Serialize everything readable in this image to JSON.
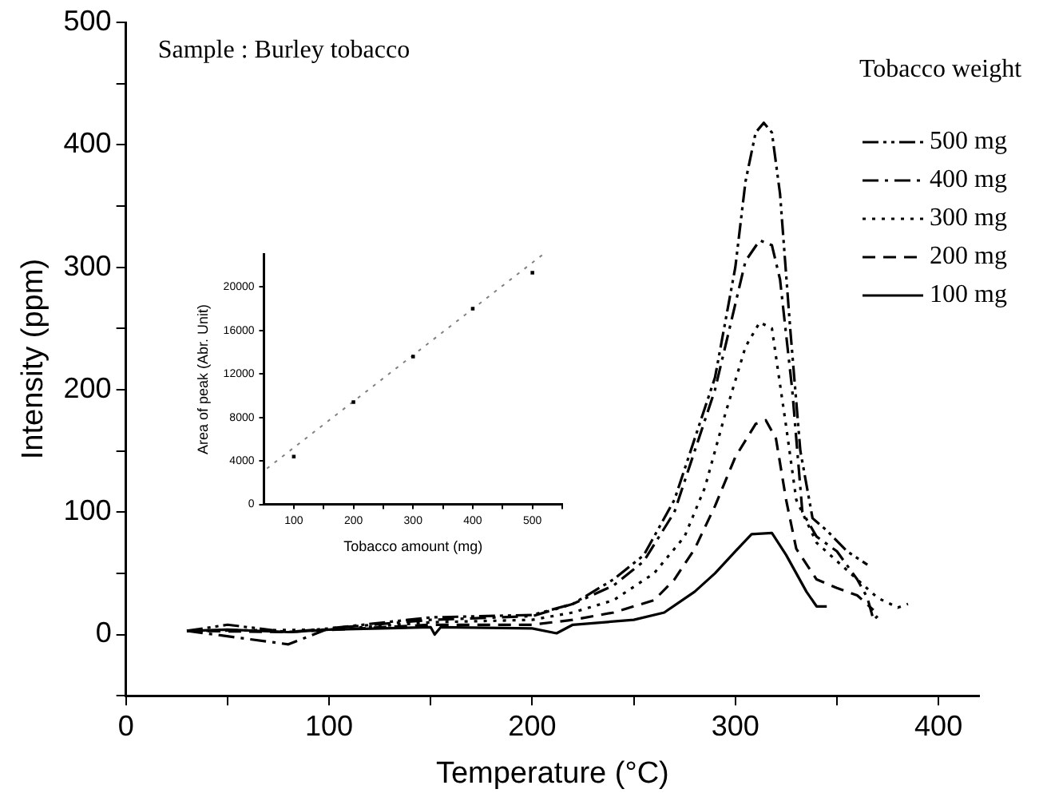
{
  "chart_data": [
    {
      "type": "line",
      "xlabel": "Temperature (°C)",
      "ylabel": "Intensity (ppm)",
      "legend_title": "Tobacco weight",
      "legend": "top right",
      "grid": false,
      "annotations": [
        "Sample : Burley tobacco"
      ],
      "xlim": [
        0,
        420
      ],
      "xticks": [
        0,
        {
          "value": 50,
          "label": null
        },
        100,
        {
          "value": 150,
          "label": null
        },
        200,
        {
          "value": 250,
          "label": null
        },
        300,
        {
          "value": 350,
          "label": null
        },
        400
      ],
      "ylim": [
        -50,
        500
      ],
      "yticks": [
        {
          "value": -50,
          "label": null
        },
        0,
        {
          "value": 50,
          "label": null
        },
        100,
        {
          "value": 150,
          "label": null
        },
        200,
        {
          "value": 250,
          "label": null
        },
        300,
        {
          "value": 350,
          "label": null
        },
        400,
        {
          "value": 450,
          "label": null
        },
        500
      ],
      "series": [
        {
          "name": "500 mg",
          "color": "#000000",
          "line_style": "dashdotdot",
          "x": [
            30,
            50,
            80,
            100,
            150,
            200,
            220,
            240,
            255,
            270,
            280,
            290,
            300,
            305,
            310,
            314,
            318,
            322,
            327,
            332,
            338,
            345,
            355,
            365
          ],
          "values": [
            3,
            8,
            2,
            5,
            14,
            16,
            25,
            45,
            65,
            110,
            160,
            210,
            300,
            370,
            410,
            418,
            410,
            360,
            250,
            150,
            95,
            85,
            68,
            57
          ]
        },
        {
          "name": "400 mg",
          "color": "#000000",
          "line_style": "dashdot",
          "x": [
            30,
            80,
            100,
            150,
            200,
            220,
            240,
            255,
            270,
            280,
            290,
            300,
            305,
            312,
            318,
            322,
            328,
            333,
            340,
            350,
            360,
            365,
            368,
            372
          ],
          "values": [
            3,
            -8,
            5,
            12,
            15,
            25,
            40,
            60,
            100,
            150,
            200,
            270,
            305,
            322,
            318,
            290,
            200,
            100,
            80,
            68,
            45,
            30,
            12,
            18
          ]
        },
        {
          "name": "300 mg",
          "color": "#000000",
          "line_style": "dotted",
          "x": [
            30,
            100,
            150,
            200,
            220,
            240,
            260,
            275,
            285,
            295,
            305,
            312,
            318,
            325,
            330,
            340,
            350,
            360,
            370,
            380,
            385
          ],
          "values": [
            3,
            4,
            10,
            12,
            18,
            28,
            50,
            80,
            120,
            180,
            235,
            255,
            250,
            170,
            110,
            75,
            60,
            45,
            30,
            22,
            25
          ]
        },
        {
          "name": "200 mg",
          "color": "#000000",
          "line_style": "dashed",
          "x": [
            30,
            80,
            150,
            200,
            220,
            240,
            260,
            270,
            280,
            290,
            300,
            310,
            315,
            320,
            325,
            330,
            340,
            350,
            360,
            368
          ],
          "values": [
            3,
            2,
            8,
            8,
            12,
            18,
            28,
            45,
            70,
            105,
            145,
            172,
            175,
            160,
            110,
            70,
            45,
            38,
            32,
            20
          ]
        },
        {
          "name": "100 mg",
          "color": "#000000",
          "line_style": "solid",
          "x": [
            30,
            50,
            80,
            100,
            150,
            152,
            155,
            200,
            212,
            220,
            250,
            265,
            280,
            290,
            300,
            308,
            318,
            325,
            335,
            340,
            345
          ],
          "values": [
            3,
            4,
            2,
            4,
            6,
            0,
            6,
            5,
            1,
            8,
            12,
            18,
            35,
            50,
            68,
            82,
            83,
            65,
            35,
            23,
            23
          ]
        }
      ]
    },
    {
      "type": "scatter",
      "xlabel": "Tobacco amount (mg)",
      "ylabel": "Area of peak (Abr. Unit)",
      "grid": false,
      "marker": "square",
      "xlim": [
        50,
        550
      ],
      "xticks": [
        100,
        {
          "value": 150,
          "label": null
        },
        200,
        {
          "value": 250,
          "label": null
        },
        300,
        {
          "value": 350,
          "label": null
        },
        400,
        {
          "value": 450,
          "label": null
        },
        500,
        {
          "value": 550,
          "label": null
        }
      ],
      "ylim": [
        0,
        23000
      ],
      "yticks": [
        0,
        4000,
        8000,
        12000,
        16000,
        20000
      ],
      "series": [
        {
          "color": "#000000",
          "x": [
            100,
            200,
            300,
            400,
            500
          ],
          "values": [
            4400,
            9400,
            13600,
            18000,
            21300
          ]
        },
        {
          "type": "line",
          "color": "#808080",
          "line_style": "dotted",
          "marker": "none",
          "x": [
            55,
            518
          ],
          "values": [
            3300,
            23000
          ]
        }
      ]
    }
  ]
}
